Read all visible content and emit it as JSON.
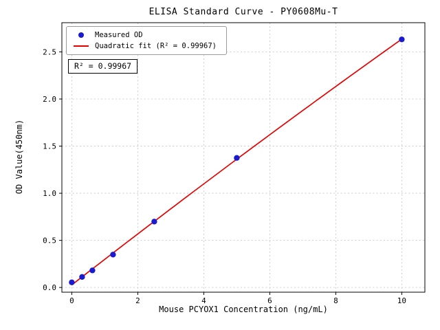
{
  "chart_data": {
    "type": "scatter",
    "title": "ELISA Standard Curve - PY0608Mu-T",
    "xlabel": "Mouse PCYOX1 Concentration (ng/mL)",
    "ylabel": "OD Value(450nm)",
    "x": [
      0,
      0.313,
      0.625,
      1.25,
      2.5,
      5,
      10
    ],
    "series": [
      {
        "name": "Measured OD",
        "type": "scatter",
        "color": "#1a1ace",
        "values": [
          0.054,
          0.112,
          0.181,
          0.349,
          0.699,
          1.375,
          2.633
        ]
      },
      {
        "name": "Quadratic fit (R² = 0.99967)",
        "type": "line",
        "color": "#e80000",
        "fit": "quadratic",
        "r_squared": 0.99967
      }
    ],
    "annotation": "R² = 0.99967",
    "xlim": [
      -0.3,
      10.7
    ],
    "ylim": [
      -0.05,
      2.81
    ],
    "xticks": [
      0,
      2,
      4,
      6,
      8,
      10
    ],
    "yticks": [
      0,
      0.5,
      1,
      1.5,
      2,
      2.5
    ],
    "grid": true,
    "grid_style": "dashed",
    "legend_position": "upper left"
  },
  "colors": {
    "marker": "#1a1ace",
    "fit_line": "#e80000",
    "grid": "#c0c0c0",
    "axis": "#000000",
    "background": "#ffffff"
  }
}
